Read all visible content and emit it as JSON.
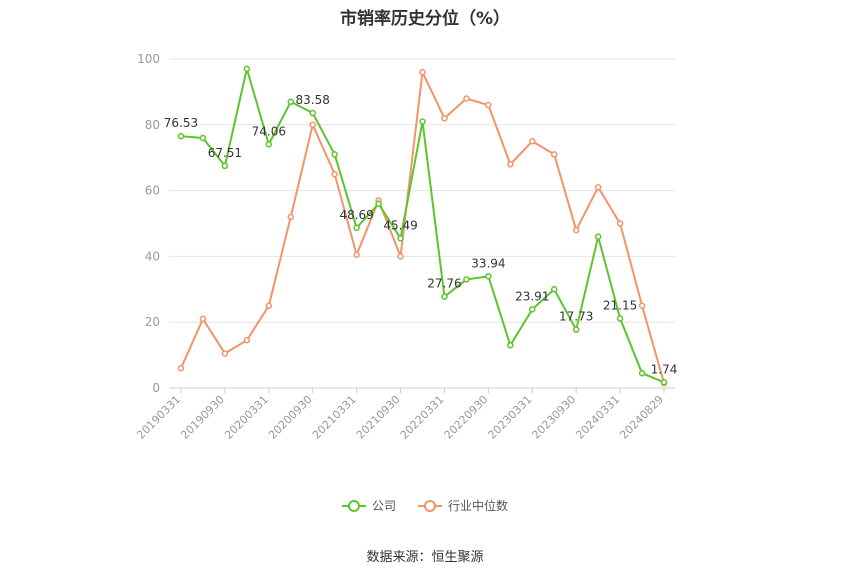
{
  "title": "市销率历史分位（%）",
  "source": "数据来源：恒生聚源",
  "colors": {
    "company": "#5dc42c",
    "industry": "#f3936a",
    "grid": "#e6e6e6",
    "tick": "#999999"
  },
  "chart_data": {
    "type": "line",
    "title": "市销率历史分位（%）",
    "xlabel": "",
    "ylabel": "",
    "ylim": [
      0,
      100
    ],
    "yticks": [
      0,
      20,
      40,
      60,
      80,
      100
    ],
    "grid": true,
    "legend_position": "bottom",
    "x": [
      "20190331",
      "20190630",
      "20190930",
      "20191231",
      "20200331",
      "20200630",
      "20200930",
      "20201231",
      "20210331",
      "20210630",
      "20210930",
      "20211231",
      "20220331",
      "20220630",
      "20220930",
      "20221231",
      "20230331",
      "20230630",
      "20230930",
      "20231231",
      "20240331",
      "20240630",
      "20240829"
    ],
    "xtick_labels": [
      "20190331",
      "20190930",
      "20200331",
      "20200930",
      "20210331",
      "20210930",
      "20220331",
      "20220930",
      "20230331",
      "20230930",
      "20240331",
      "20240829"
    ],
    "series": [
      {
        "name": "公司",
        "values": [
          76.53,
          76.0,
          67.51,
          97.0,
          74.06,
          87.0,
          83.58,
          71.0,
          48.69,
          56.0,
          45.49,
          81.0,
          27.76,
          33.0,
          33.94,
          13.0,
          23.91,
          30.0,
          17.73,
          46.0,
          21.15,
          4.5,
          1.74
        ],
        "labels": [
          "76.53",
          null,
          "67.51",
          null,
          "74.06",
          null,
          "83.58",
          null,
          "48.69",
          null,
          "45.49",
          null,
          "27.76",
          null,
          "33.94",
          null,
          "23.91",
          null,
          "17.73",
          null,
          "21.15",
          null,
          "1.74"
        ]
      },
      {
        "name": "行业中位数",
        "values": [
          6.0,
          21.0,
          10.5,
          14.5,
          25.0,
          52.0,
          80.0,
          65.0,
          40.5,
          57.0,
          40.0,
          96.0,
          82.0,
          88.0,
          86.0,
          68.0,
          75.0,
          71.0,
          48.0,
          61.0,
          50.0,
          25.0,
          1.5
        ]
      }
    ]
  }
}
